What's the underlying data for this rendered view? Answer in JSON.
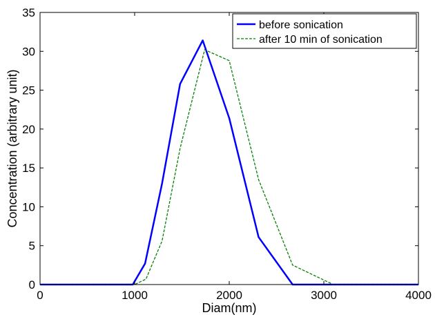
{
  "chart_data": {
    "type": "line",
    "title": "",
    "xlabel": "Diam(nm)",
    "ylabel": "Concentration (arbitrary unit)",
    "xlim": [
      0,
      4000
    ],
    "ylim": [
      0,
      35
    ],
    "x_ticks": [
      0,
      1000,
      2000,
      3000,
      4000
    ],
    "y_ticks": [
      0,
      5,
      10,
      15,
      20,
      25,
      30,
      35
    ],
    "grid": false,
    "legend_position": "top-right",
    "series": [
      {
        "name": "before sonication",
        "color": "#0000ff",
        "style": "solid",
        "x": [
          0,
          980,
          1110,
          1290,
          1480,
          1720,
          2000,
          2310,
          2670,
          4000
        ],
        "y": [
          0,
          0,
          2.7,
          13,
          25.8,
          31.4,
          21.4,
          6.1,
          0,
          0
        ]
      },
      {
        "name": "after 10 min of sonication",
        "color": "#008000",
        "style": "dashed",
        "x": [
          0,
          1000,
          1120,
          1290,
          1480,
          1740,
          2000,
          2310,
          2670,
          3100,
          4000
        ],
        "y": [
          0,
          0,
          0.7,
          5.6,
          17.5,
          30.2,
          28.8,
          13.5,
          2.5,
          0,
          0
        ]
      }
    ]
  }
}
